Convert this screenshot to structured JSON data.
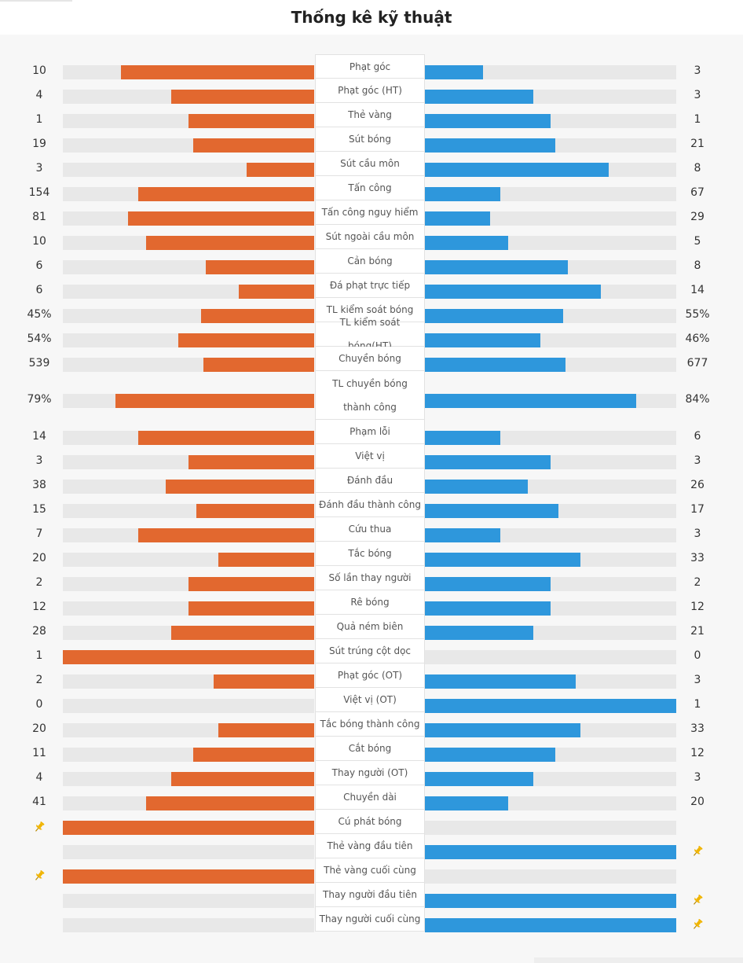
{
  "title": "Thống kê kỹ thuật",
  "colors": {
    "home": "#e2682f",
    "away": "#2e97dc",
    "track": "#e8e8e8",
    "pin": "#f0b400"
  },
  "stats": [
    {
      "label": "Phạt góc",
      "home": "10",
      "away": "3",
      "home_ratio": 0.77,
      "away_ratio": 0.23
    },
    {
      "label": "Phạt góc (HT)",
      "home": "4",
      "away": "3",
      "home_ratio": 0.57,
      "away_ratio": 0.43
    },
    {
      "label": "Thẻ vàng",
      "home": "1",
      "away": "1",
      "home_ratio": 0.5,
      "away_ratio": 0.5
    },
    {
      "label": "Sút bóng",
      "home": "19",
      "away": "21",
      "home_ratio": 0.48,
      "away_ratio": 0.52
    },
    {
      "label": "Sút cầu môn",
      "home": "3",
      "away": "8",
      "home_ratio": 0.27,
      "away_ratio": 0.73
    },
    {
      "label": "Tấn công",
      "home": "154",
      "away": "67",
      "home_ratio": 0.7,
      "away_ratio": 0.3
    },
    {
      "label": "Tấn công nguy hiểm",
      "home": "81",
      "away": "29",
      "home_ratio": 0.74,
      "away_ratio": 0.26
    },
    {
      "label": "Sút ngoài cầu môn",
      "home": "10",
      "away": "5",
      "home_ratio": 0.67,
      "away_ratio": 0.33
    },
    {
      "label": "Cản bóng",
      "home": "6",
      "away": "8",
      "home_ratio": 0.43,
      "away_ratio": 0.57
    },
    {
      "label": "Đá phạt trực tiếp",
      "home": "6",
      "away": "14",
      "home_ratio": 0.3,
      "away_ratio": 0.7
    },
    {
      "label": "TL kiểm soát bóng",
      "home": "45%",
      "away": "55%",
      "home_ratio": 0.45,
      "away_ratio": 0.55
    },
    {
      "label": "TL kiểm soát bóng(HT)",
      "home": "54%",
      "away": "46%",
      "home_ratio": 0.54,
      "away_ratio": 0.46
    },
    {
      "label": "Chuyền bóng",
      "home": "539",
      "away": "677",
      "home_ratio": 0.44,
      "away_ratio": 0.56
    },
    {
      "label": "TL chuyền bóng thành công",
      "home": "79%",
      "away": "84%",
      "home_ratio": 0.79,
      "away_ratio": 0.84,
      "tall": true
    },
    {
      "label": "Phạm lỗi",
      "home": "14",
      "away": "6",
      "home_ratio": 0.7,
      "away_ratio": 0.3
    },
    {
      "label": "Việt vị",
      "home": "3",
      "away": "3",
      "home_ratio": 0.5,
      "away_ratio": 0.5
    },
    {
      "label": "Đánh đầu",
      "home": "38",
      "away": "26",
      "home_ratio": 0.59,
      "away_ratio": 0.41
    },
    {
      "label": "Đánh đầu thành công",
      "home": "15",
      "away": "17",
      "home_ratio": 0.47,
      "away_ratio": 0.53
    },
    {
      "label": "Cứu thua",
      "home": "7",
      "away": "3",
      "home_ratio": 0.7,
      "away_ratio": 0.3
    },
    {
      "label": "Tắc bóng",
      "home": "20",
      "away": "33",
      "home_ratio": 0.38,
      "away_ratio": 0.62
    },
    {
      "label": "Số lần thay người",
      "home": "2",
      "away": "2",
      "home_ratio": 0.5,
      "away_ratio": 0.5
    },
    {
      "label": "Rê bóng",
      "home": "12",
      "away": "12",
      "home_ratio": 0.5,
      "away_ratio": 0.5
    },
    {
      "label": "Quả ném biên",
      "home": "28",
      "away": "21",
      "home_ratio": 0.57,
      "away_ratio": 0.43
    },
    {
      "label": "Sút trúng cột dọc",
      "home": "1",
      "away": "0",
      "home_ratio": 1.0,
      "away_ratio": 0.0
    },
    {
      "label": "Phạt góc (OT)",
      "home": "2",
      "away": "3",
      "home_ratio": 0.4,
      "away_ratio": 0.6
    },
    {
      "label": "Việt vị (OT)",
      "home": "0",
      "away": "1",
      "home_ratio": 0.0,
      "away_ratio": 1.0
    },
    {
      "label": "Tắc bóng thành công",
      "home": "20",
      "away": "33",
      "home_ratio": 0.38,
      "away_ratio": 0.62
    },
    {
      "label": "Cắt bóng",
      "home": "11",
      "away": "12",
      "home_ratio": 0.48,
      "away_ratio": 0.52
    },
    {
      "label": "Thay người (OT)",
      "home": "4",
      "away": "3",
      "home_ratio": 0.57,
      "away_ratio": 0.43
    },
    {
      "label": "Chuyền dài",
      "home": "41",
      "away": "20",
      "home_ratio": 0.67,
      "away_ratio": 0.33
    },
    {
      "label": "Cú phát bóng",
      "home": "",
      "away": "",
      "home_ratio": 1.0,
      "away_ratio": 0.0,
      "pin": "home"
    },
    {
      "label": "Thẻ vàng đầu tiên",
      "home": "",
      "away": "",
      "home_ratio": 0.0,
      "away_ratio": 1.0,
      "pin": "away"
    },
    {
      "label": "Thẻ vàng cuối cùng",
      "home": "",
      "away": "",
      "home_ratio": 1.0,
      "away_ratio": 0.0,
      "pin": "home"
    },
    {
      "label": "Thay người đầu tiên",
      "home": "",
      "away": "",
      "home_ratio": 0.0,
      "away_ratio": 1.0,
      "pin": "away"
    },
    {
      "label": "Thay người cuối cùng",
      "home": "",
      "away": "",
      "home_ratio": 0.0,
      "away_ratio": 1.0,
      "pin": "away"
    }
  ]
}
